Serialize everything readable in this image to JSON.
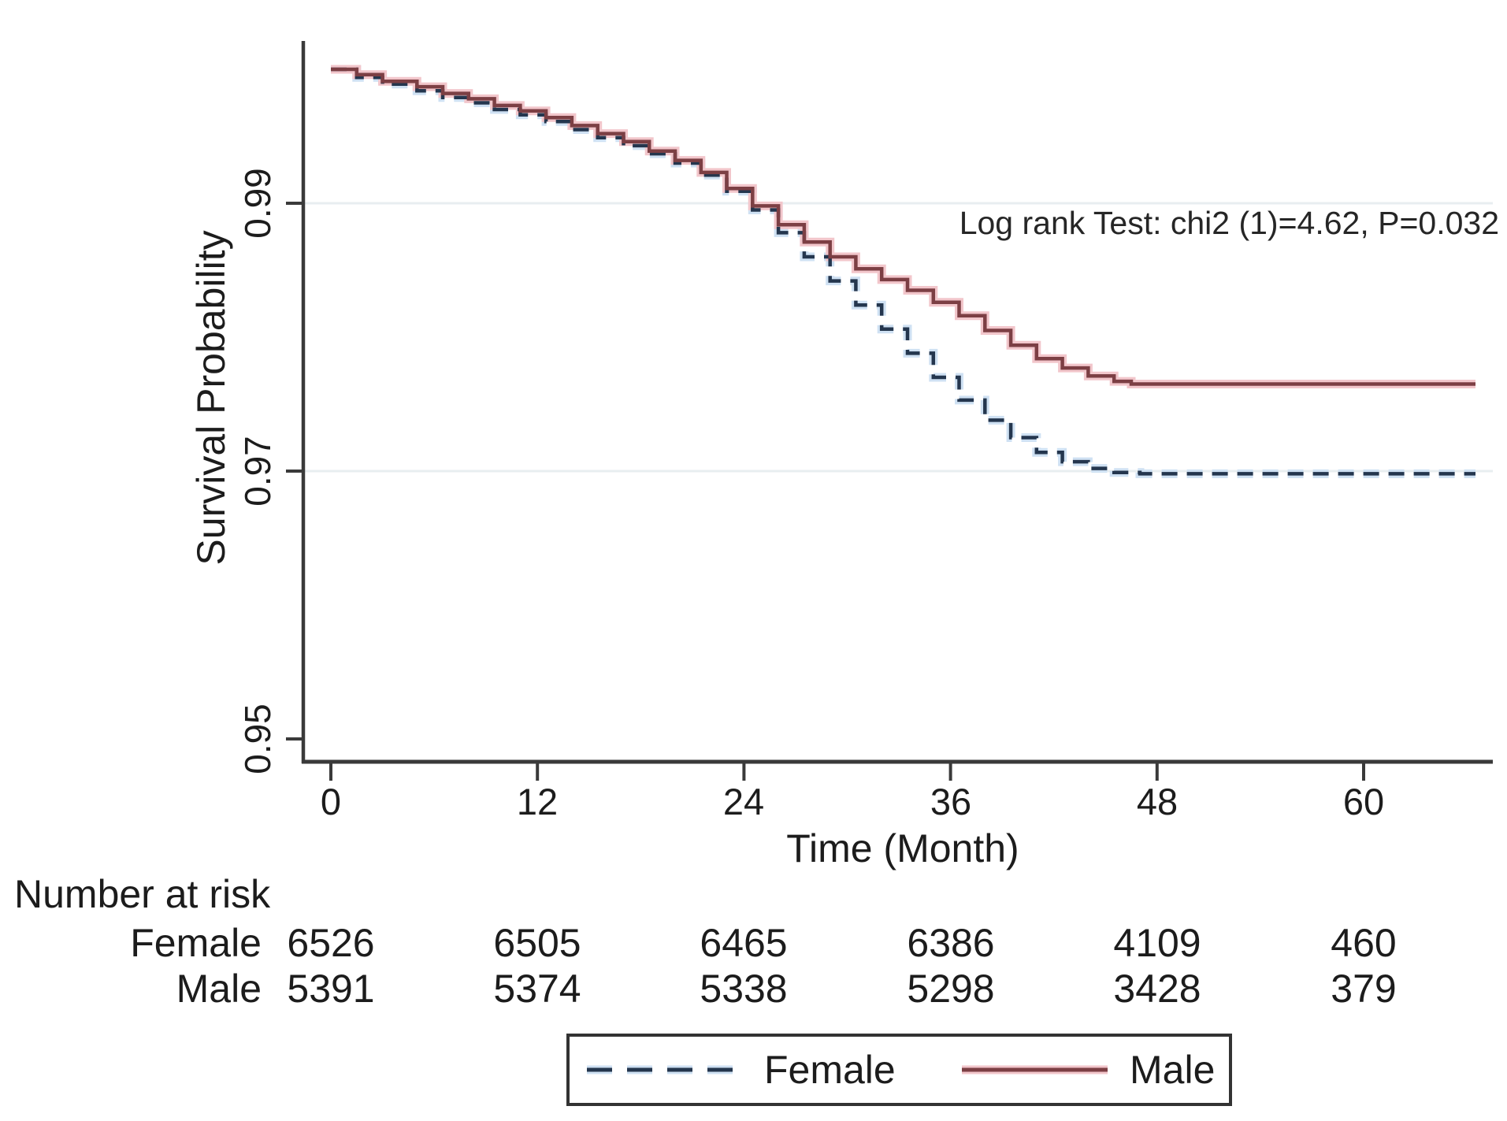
{
  "figure": {
    "background": "#ffffff",
    "text_color": "#1c1c1c",
    "axis_color": "#3a3a3a",
    "gridline_color": "#e8eef0"
  },
  "chart_data": {
    "type": "line",
    "subtype": "kaplan-meier-survival-step",
    "title": "",
    "xlabel": "Time (Month)",
    "ylabel": "Survival Probability",
    "xlim": [
      0,
      68
    ],
    "ylim": [
      0.945,
      1.0
    ],
    "xticks": [
      0,
      12,
      24,
      36,
      48,
      60
    ],
    "xtick_labels": [
      "0",
      "12",
      "24",
      "36",
      "48",
      "60"
    ],
    "yticks": [
      0.95,
      0.97,
      0.99
    ],
    "ytick_labels": [
      "0.95",
      "0.97",
      "0.99"
    ],
    "gridlines_y": [
      0.97,
      0.99
    ],
    "grid": "horizontal-only",
    "legend_position": "bottom-center-boxed",
    "annotation": "Log rank Test: chi2 (1)=4.62, P=0.032",
    "series": [
      {
        "name": "Female",
        "style": "dashed",
        "color": "#24364e",
        "halo": "#cfe1f3",
        "points": [
          [
            0,
            1.0
          ],
          [
            1.5,
            0.9994
          ],
          [
            3,
            0.9989
          ],
          [
            5,
            0.9984
          ],
          [
            6.5,
            0.9979
          ],
          [
            8,
            0.9975
          ],
          [
            9.5,
            0.997
          ],
          [
            11,
            0.9966
          ],
          [
            12.5,
            0.9961
          ],
          [
            14,
            0.9955
          ],
          [
            15.5,
            0.9949
          ],
          [
            17,
            0.9943
          ],
          [
            18.5,
            0.9937
          ],
          [
            20,
            0.993
          ],
          [
            21.5,
            0.9921
          ],
          [
            23,
            0.9909
          ],
          [
            24.5,
            0.9895
          ],
          [
            26,
            0.9878
          ],
          [
            27.5,
            0.986
          ],
          [
            29,
            0.9842
          ],
          [
            30.5,
            0.9824
          ],
          [
            32,
            0.9806
          ],
          [
            33.5,
            0.9788
          ],
          [
            35,
            0.977
          ],
          [
            36.5,
            0.9753
          ],
          [
            38,
            0.9738
          ],
          [
            39.5,
            0.9725
          ],
          [
            41,
            0.9714
          ],
          [
            42.5,
            0.9707
          ],
          [
            44,
            0.9702
          ],
          [
            45.5,
            0.9699
          ],
          [
            47,
            0.9698
          ],
          [
            66.5,
            0.9698
          ]
        ]
      },
      {
        "name": "Male",
        "style": "solid",
        "color": "#7c3f44",
        "halo": "#f2c6cb",
        "points": [
          [
            0,
            1.0
          ],
          [
            1.5,
            0.9996
          ],
          [
            3,
            0.9991
          ],
          [
            5,
            0.9987
          ],
          [
            6.5,
            0.9982
          ],
          [
            8,
            0.9978
          ],
          [
            9.5,
            0.9973
          ],
          [
            11,
            0.9969
          ],
          [
            12.5,
            0.9964
          ],
          [
            14,
            0.9958
          ],
          [
            15.5,
            0.9952
          ],
          [
            17,
            0.9946
          ],
          [
            18.5,
            0.9939
          ],
          [
            20,
            0.9932
          ],
          [
            21.5,
            0.9923
          ],
          [
            23,
            0.9911
          ],
          [
            24.5,
            0.9898
          ],
          [
            26,
            0.9884
          ],
          [
            27.5,
            0.9871
          ],
          [
            29,
            0.986
          ],
          [
            30.5,
            0.9851
          ],
          [
            32,
            0.9843
          ],
          [
            33.5,
            0.9835
          ],
          [
            35,
            0.9826
          ],
          [
            36.5,
            0.9816
          ],
          [
            38,
            0.9805
          ],
          [
            39.5,
            0.9794
          ],
          [
            41,
            0.9784
          ],
          [
            42.5,
            0.9777
          ],
          [
            44,
            0.9771
          ],
          [
            45.5,
            0.9767
          ],
          [
            46.5,
            0.9765
          ],
          [
            66.5,
            0.9765
          ]
        ]
      }
    ]
  },
  "risk_table": {
    "title": "Number at risk",
    "rows": [
      {
        "label": "Female",
        "values": [
          "6526",
          "6505",
          "6465",
          "6386",
          "4109",
          "460"
        ]
      },
      {
        "label": "Male",
        "values": [
          "5391",
          "5374",
          "5338",
          "5298",
          "3428",
          "379"
        ]
      }
    ]
  },
  "legend": {
    "items": [
      {
        "label": "Female",
        "style": "dashed"
      },
      {
        "label": "Male",
        "style": "solid"
      }
    ]
  }
}
